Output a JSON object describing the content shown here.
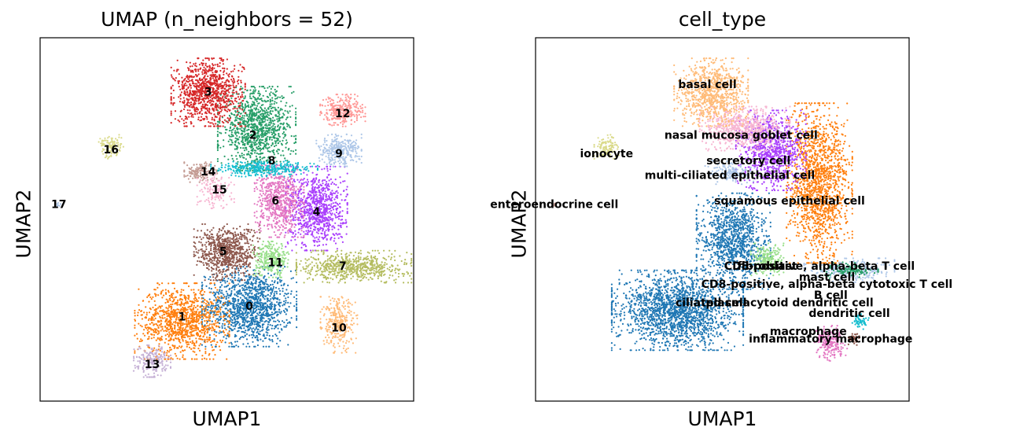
{
  "chart_data": [
    {
      "type": "scatter",
      "title": "UMAP (n_neighbors = 52)",
      "xlabel": "UMAP1",
      "ylabel": "UMAP2",
      "grid": false,
      "legend": "on-data",
      "xlim": [
        0,
        10
      ],
      "ylim": [
        0,
        10
      ],
      "clusters": [
        {
          "label": "0",
          "color": "#1f77b4",
          "x": 5.6,
          "y": 2.6,
          "w": 1.15,
          "h": 1.0,
          "n": 1300
        },
        {
          "label": "1",
          "color": "#ff7f0e",
          "x": 3.8,
          "y": 2.2,
          "w": 1.15,
          "h": 0.95,
          "n": 1100
        },
        {
          "label": "2",
          "color": "#279e68",
          "x": 5.8,
          "y": 7.5,
          "w": 0.95,
          "h": 1.05,
          "n": 1100
        },
        {
          "label": "3",
          "color": "#d62728",
          "x": 4.5,
          "y": 8.5,
          "w": 0.9,
          "h": 0.85,
          "n": 1000
        },
        {
          "label": "4",
          "color": "#aa40fc",
          "x": 7.4,
          "y": 5.3,
          "w": 0.75,
          "h": 1.05,
          "n": 900
        },
        {
          "label": "5",
          "color": "#8c564b",
          "x": 5.0,
          "y": 4.1,
          "w": 0.8,
          "h": 0.7,
          "n": 750
        },
        {
          "label": "6",
          "color": "#e377c2",
          "x": 6.4,
          "y": 5.5,
          "w": 0.6,
          "h": 0.9,
          "n": 650
        },
        {
          "label": "7",
          "color": "#b5bd61",
          "x": 8.4,
          "y": 3.7,
          "w": 1.4,
          "h": 0.4,
          "n": 650
        },
        {
          "label": "8",
          "color": "#17becf",
          "x": 6.0,
          "y": 6.4,
          "w": 1.3,
          "h": 0.2,
          "n": 350
        },
        {
          "label": "9",
          "color": "#aec7e8",
          "x": 8.0,
          "y": 6.9,
          "w": 0.55,
          "h": 0.4,
          "n": 320
        },
        {
          "label": "10",
          "color": "#ffbb78",
          "x": 8.0,
          "y": 2.1,
          "w": 0.45,
          "h": 0.7,
          "n": 300
        },
        {
          "label": "11",
          "color": "#98df8a",
          "x": 6.2,
          "y": 3.9,
          "w": 0.45,
          "h": 0.45,
          "n": 280
        },
        {
          "label": "12",
          "color": "#ff9896",
          "x": 8.1,
          "y": 8.0,
          "w": 0.55,
          "h": 0.4,
          "n": 280
        },
        {
          "label": "13",
          "color": "#c5b0d5",
          "x": 3.0,
          "y": 1.1,
          "w": 0.45,
          "h": 0.4,
          "n": 220
        },
        {
          "label": "14",
          "color": "#c49c94",
          "x": 4.3,
          "y": 6.3,
          "w": 0.4,
          "h": 0.25,
          "n": 160
        },
        {
          "label": "15",
          "color": "#f7b6d2",
          "x": 4.7,
          "y": 5.8,
          "w": 0.45,
          "h": 0.45,
          "n": 150
        },
        {
          "label": "16",
          "color": "#dbdb8d",
          "x": 1.9,
          "y": 7.0,
          "w": 0.3,
          "h": 0.3,
          "n": 120
        },
        {
          "label": "17",
          "color": "#aec7e8",
          "x": 0.5,
          "y": 5.4,
          "w": 0.05,
          "h": 0.05,
          "n": 6
        }
      ],
      "labels": [
        {
          "text": "0",
          "x": 5.6,
          "y": 2.6
        },
        {
          "text": "1",
          "x": 3.8,
          "y": 2.3
        },
        {
          "text": "2",
          "x": 5.7,
          "y": 7.3
        },
        {
          "text": "3",
          "x": 4.5,
          "y": 8.5
        },
        {
          "text": "4",
          "x": 7.4,
          "y": 5.2
        },
        {
          "text": "5",
          "x": 4.9,
          "y": 4.1
        },
        {
          "text": "6",
          "x": 6.3,
          "y": 5.5
        },
        {
          "text": "7",
          "x": 8.1,
          "y": 3.7
        },
        {
          "text": "8",
          "x": 6.2,
          "y": 6.6
        },
        {
          "text": "9",
          "x": 8.0,
          "y": 6.8
        },
        {
          "text": "10",
          "x": 8.0,
          "y": 2.0
        },
        {
          "text": "11",
          "x": 6.3,
          "y": 3.8
        },
        {
          "text": "12",
          "x": 8.1,
          "y": 7.9
        },
        {
          "text": "13",
          "x": 3.0,
          "y": 1.0
        },
        {
          "text": "14",
          "x": 4.5,
          "y": 6.3
        },
        {
          "text": "15",
          "x": 4.8,
          "y": 5.8
        },
        {
          "text": "16",
          "x": 1.9,
          "y": 6.9
        },
        {
          "text": "17",
          "x": 0.5,
          "y": 5.4
        }
      ]
    },
    {
      "type": "scatter",
      "title": "cell_type",
      "xlabel": "UMAP1",
      "ylabel": "UMAP2",
      "grid": false,
      "legend": "on-data",
      "xlim": [
        0,
        10
      ],
      "ylim": [
        0,
        10
      ],
      "clusters": [
        {
          "label": "ciliated cell",
          "color": "#1f77b4",
          "x": 3.8,
          "y": 2.5,
          "w": 1.6,
          "h": 1.0,
          "n": 1900
        },
        {
          "label": "ciliated cell",
          "color": "#1f77b4",
          "x": 5.3,
          "y": 4.4,
          "w": 0.9,
          "h": 1.2,
          "n": 1100
        },
        {
          "label": "squamous epithelial cell",
          "color": "#ff7f0e",
          "x": 7.6,
          "y": 6.0,
          "w": 0.8,
          "h": 2.0,
          "n": 1500
        },
        {
          "label": "secretory cell",
          "color": "#aa40fc",
          "x": 6.3,
          "y": 6.9,
          "w": 0.85,
          "h": 1.0,
          "n": 900
        },
        {
          "label": "nasal mucosa goblet cell",
          "color": "#f7b6d2",
          "x": 5.6,
          "y": 7.5,
          "w": 1.1,
          "h": 0.55,
          "n": 700
        },
        {
          "label": "basal cell",
          "color": "#ffbb78",
          "x": 4.7,
          "y": 8.5,
          "w": 0.9,
          "h": 0.85,
          "n": 900
        },
        {
          "label": "multi-ciliated epithelial cell",
          "color": "#aec7e8",
          "x": 5.2,
          "y": 6.3,
          "w": 0.6,
          "h": 0.3,
          "n": 140
        },
        {
          "label": "ionocyte",
          "color": "#dbdb8d",
          "x": 1.9,
          "y": 7.0,
          "w": 0.3,
          "h": 0.3,
          "n": 120
        },
        {
          "label": "enteroendocrine cell",
          "color": "#c49c94",
          "x": 0.5,
          "y": 5.4,
          "w": 0.05,
          "h": 0.05,
          "n": 6
        },
        {
          "label": "CD8-positive, alpha-beta cytotoxic T cell",
          "color": "#aec7e8",
          "x": 8.4,
          "y": 3.6,
          "w": 1.1,
          "h": 0.3,
          "n": 260
        },
        {
          "label": "mast cell",
          "color": "#279e68",
          "x": 8.4,
          "y": 3.6,
          "w": 0.7,
          "h": 0.2,
          "n": 120
        },
        {
          "label": "fibroblast",
          "color": "#98df8a",
          "x": 6.2,
          "y": 3.9,
          "w": 0.4,
          "h": 0.4,
          "n": 220
        },
        {
          "label": "macrophage",
          "color": "#e377c2",
          "x": 7.9,
          "y": 1.6,
          "w": 0.4,
          "h": 0.45,
          "n": 220
        },
        {
          "label": "dendritic cell",
          "color": "#17becf",
          "x": 8.7,
          "y": 2.2,
          "w": 0.2,
          "h": 0.2,
          "n": 60
        },
        {
          "label": "inflammatory macrophage",
          "color": "#8c564b",
          "x": 8.5,
          "y": 1.7,
          "w": 0.15,
          "h": 0.15,
          "n": 40
        }
      ],
      "labels": [
        {
          "text": "basal cell",
          "x": 4.6,
          "y": 8.7
        },
        {
          "text": "nasal mucosa goblet cell",
          "x": 5.5,
          "y": 7.3
        },
        {
          "text": "ionocyte",
          "x": 1.9,
          "y": 6.8
        },
        {
          "text": "secretory cell",
          "x": 5.7,
          "y": 6.6
        },
        {
          "text": "multi-ciliated epithelial cell",
          "x": 5.2,
          "y": 6.2
        },
        {
          "text": "enteroendocrine cell",
          "x": 0.5,
          "y": 5.4
        },
        {
          "text": "squamous epithelial cell",
          "x": 6.8,
          "y": 5.5
        },
        {
          "text": "CD8-positive, alpha-beta T cell",
          "x": 7.6,
          "y": 3.7
        },
        {
          "text": "fibroblast",
          "x": 6.2,
          "y": 3.7
        },
        {
          "text": "mast cell",
          "x": 7.8,
          "y": 3.4
        },
        {
          "text": "CD8-positive, alpha-beta cytotoxic T cell",
          "x": 7.8,
          "y": 3.2
        },
        {
          "text": "B cell",
          "x": 7.9,
          "y": 2.9
        },
        {
          "text": "ciliated cell",
          "x": 4.7,
          "y": 2.7
        },
        {
          "text": "plasmacytoid dendritic cell",
          "x": 6.8,
          "y": 2.7
        },
        {
          "text": "dendritic cell",
          "x": 8.4,
          "y": 2.4
        },
        {
          "text": "macrophage",
          "x": 7.3,
          "y": 1.9
        },
        {
          "text": "inflammatory macrophage",
          "x": 7.9,
          "y": 1.7
        }
      ]
    }
  ]
}
